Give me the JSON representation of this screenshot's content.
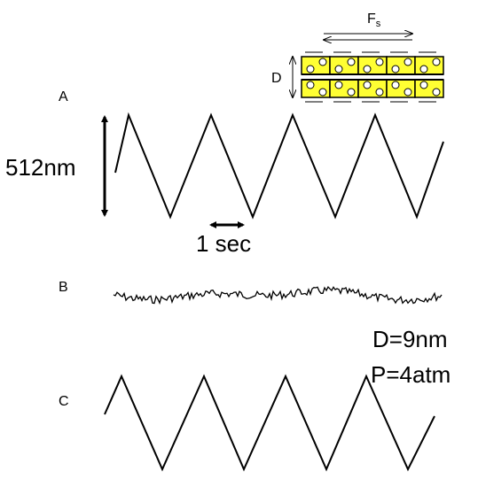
{
  "panels": [
    {
      "label": "A"
    },
    {
      "label": "B"
    },
    {
      "label": "C"
    }
  ],
  "scale_bar": {
    "amplitude": "512nm",
    "time": "1 sec"
  },
  "conditions": [
    "D=9nm",
    "P=4atm"
  ],
  "inset": {
    "force_label": "F",
    "force_subscript": "s",
    "gap_label": "D"
  }
}
